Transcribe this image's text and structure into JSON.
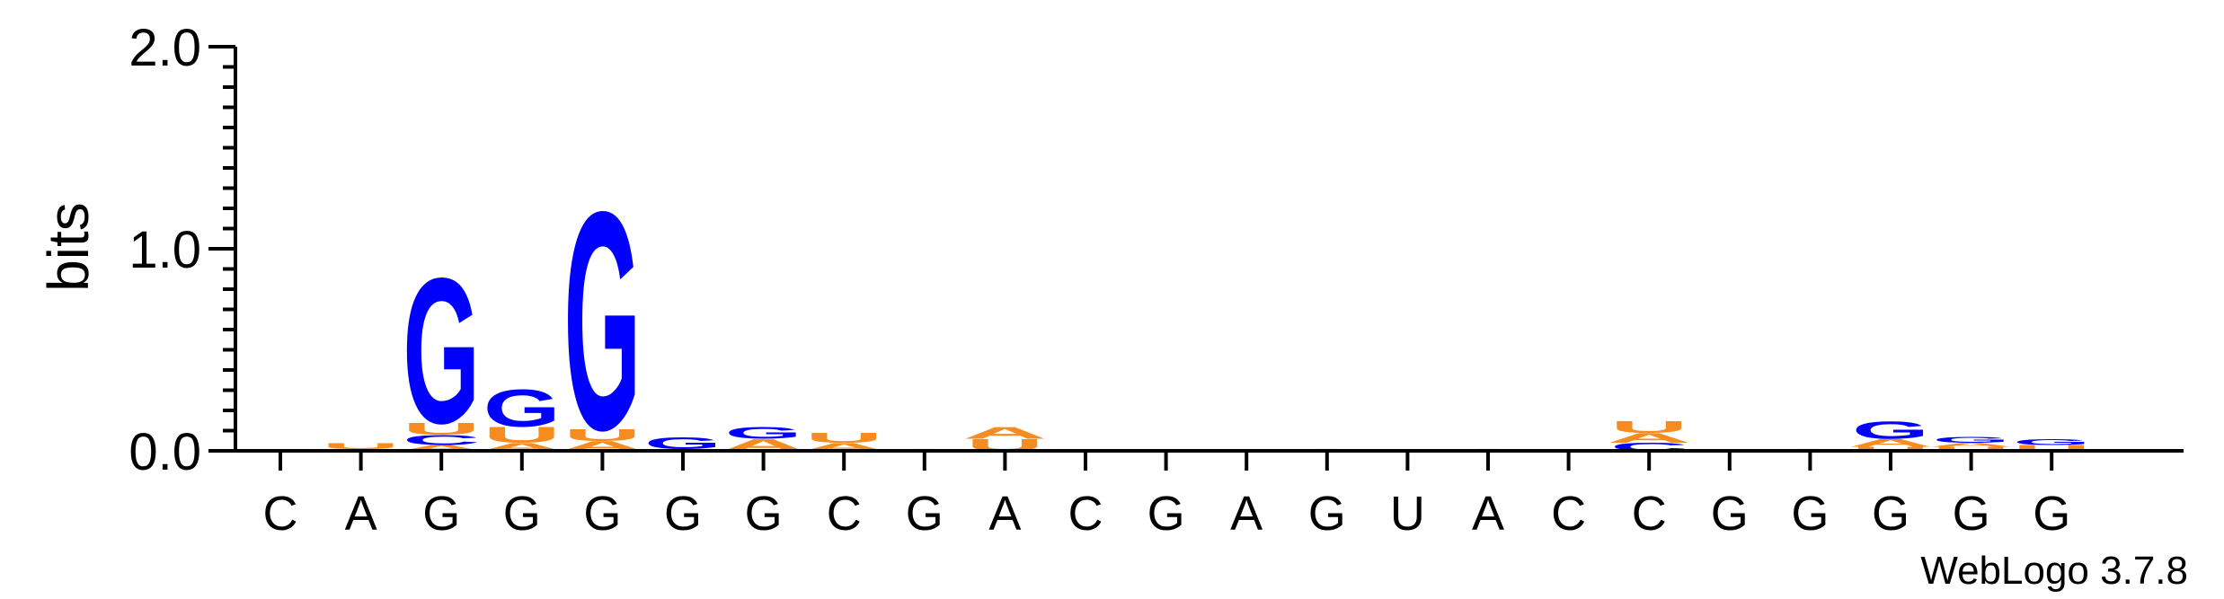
{
  "chart_data": {
    "type": "sequence-logo",
    "ylabel": "bits",
    "ylim": [
      0,
      2
    ],
    "yticks": [
      "0.0",
      "1.0",
      "2.0"
    ],
    "credit": "WebLogo 3.7.8",
    "colors": {
      "G": "#0000ff",
      "C": "#0000ff",
      "A": "#f68b1f",
      "U": "#f68b1f"
    },
    "positions": [
      {
        "label": "C",
        "stack": []
      },
      {
        "label": "A",
        "stack": [
          {
            "base": "A",
            "bits": 0.01
          },
          {
            "base": "U",
            "bits": 0.03
          }
        ]
      },
      {
        "label": "G",
        "stack": [
          {
            "base": "A",
            "bits": 0.03
          },
          {
            "base": "C",
            "bits": 0.05
          },
          {
            "base": "U",
            "bits": 0.06
          },
          {
            "base": "G",
            "bits": 0.74
          }
        ]
      },
      {
        "label": "G",
        "stack": [
          {
            "base": "A",
            "bits": 0.04
          },
          {
            "base": "U",
            "bits": 0.08
          },
          {
            "base": "G",
            "bits": 0.19
          }
        ]
      },
      {
        "label": "G",
        "stack": [
          {
            "base": "A",
            "bits": 0.05
          },
          {
            "base": "U",
            "bits": 0.06
          },
          {
            "base": "G",
            "bits": 1.11
          }
        ]
      },
      {
        "label": "G",
        "stack": [
          {
            "base": "A",
            "bits": 0.01
          },
          {
            "base": "G",
            "bits": 0.06
          }
        ]
      },
      {
        "label": "G",
        "stack": [
          {
            "base": "A",
            "bits": 0.06
          },
          {
            "base": "G",
            "bits": 0.06
          }
        ]
      },
      {
        "label": "C",
        "stack": [
          {
            "base": "A",
            "bits": 0.04
          },
          {
            "base": "U",
            "bits": 0.05
          }
        ]
      },
      {
        "label": "G",
        "stack": [
          {
            "base": "A",
            "bits": 0.01
          }
        ]
      },
      {
        "label": "A",
        "stack": [
          {
            "base": "U",
            "bits": 0.06
          },
          {
            "base": "A",
            "bits": 0.06
          }
        ]
      },
      {
        "label": "C",
        "stack": []
      },
      {
        "label": "G",
        "stack": [
          {
            "base": "G",
            "bits": 0.01
          }
        ]
      },
      {
        "label": "A",
        "stack": []
      },
      {
        "label": "G",
        "stack": [
          {
            "base": "A",
            "bits": 0.01
          }
        ]
      },
      {
        "label": "U",
        "stack": []
      },
      {
        "label": "A",
        "stack": [
          {
            "base": "A",
            "bits": 0.01
          }
        ]
      },
      {
        "label": "C",
        "stack": []
      },
      {
        "label": "C",
        "stack": [
          {
            "base": "C",
            "bits": 0.04
          },
          {
            "base": "A",
            "bits": 0.05
          },
          {
            "base": "U",
            "bits": 0.06
          }
        ]
      },
      {
        "label": "G",
        "stack": []
      },
      {
        "label": "G",
        "stack": [
          {
            "base": "A",
            "bits": 0.01
          }
        ]
      },
      {
        "label": "G",
        "stack": [
          {
            "base": "U",
            "bits": 0.02
          },
          {
            "base": "A",
            "bits": 0.04
          },
          {
            "base": "G",
            "bits": 0.09
          }
        ]
      },
      {
        "label": "G",
        "stack": [
          {
            "base": "U",
            "bits": 0.02
          },
          {
            "base": "A",
            "bits": 0.02
          },
          {
            "base": "G",
            "bits": 0.03
          }
        ]
      },
      {
        "label": "G",
        "stack": [
          {
            "base": "U",
            "bits": 0.03
          },
          {
            "base": "G",
            "bits": 0.03
          }
        ]
      }
    ]
  }
}
